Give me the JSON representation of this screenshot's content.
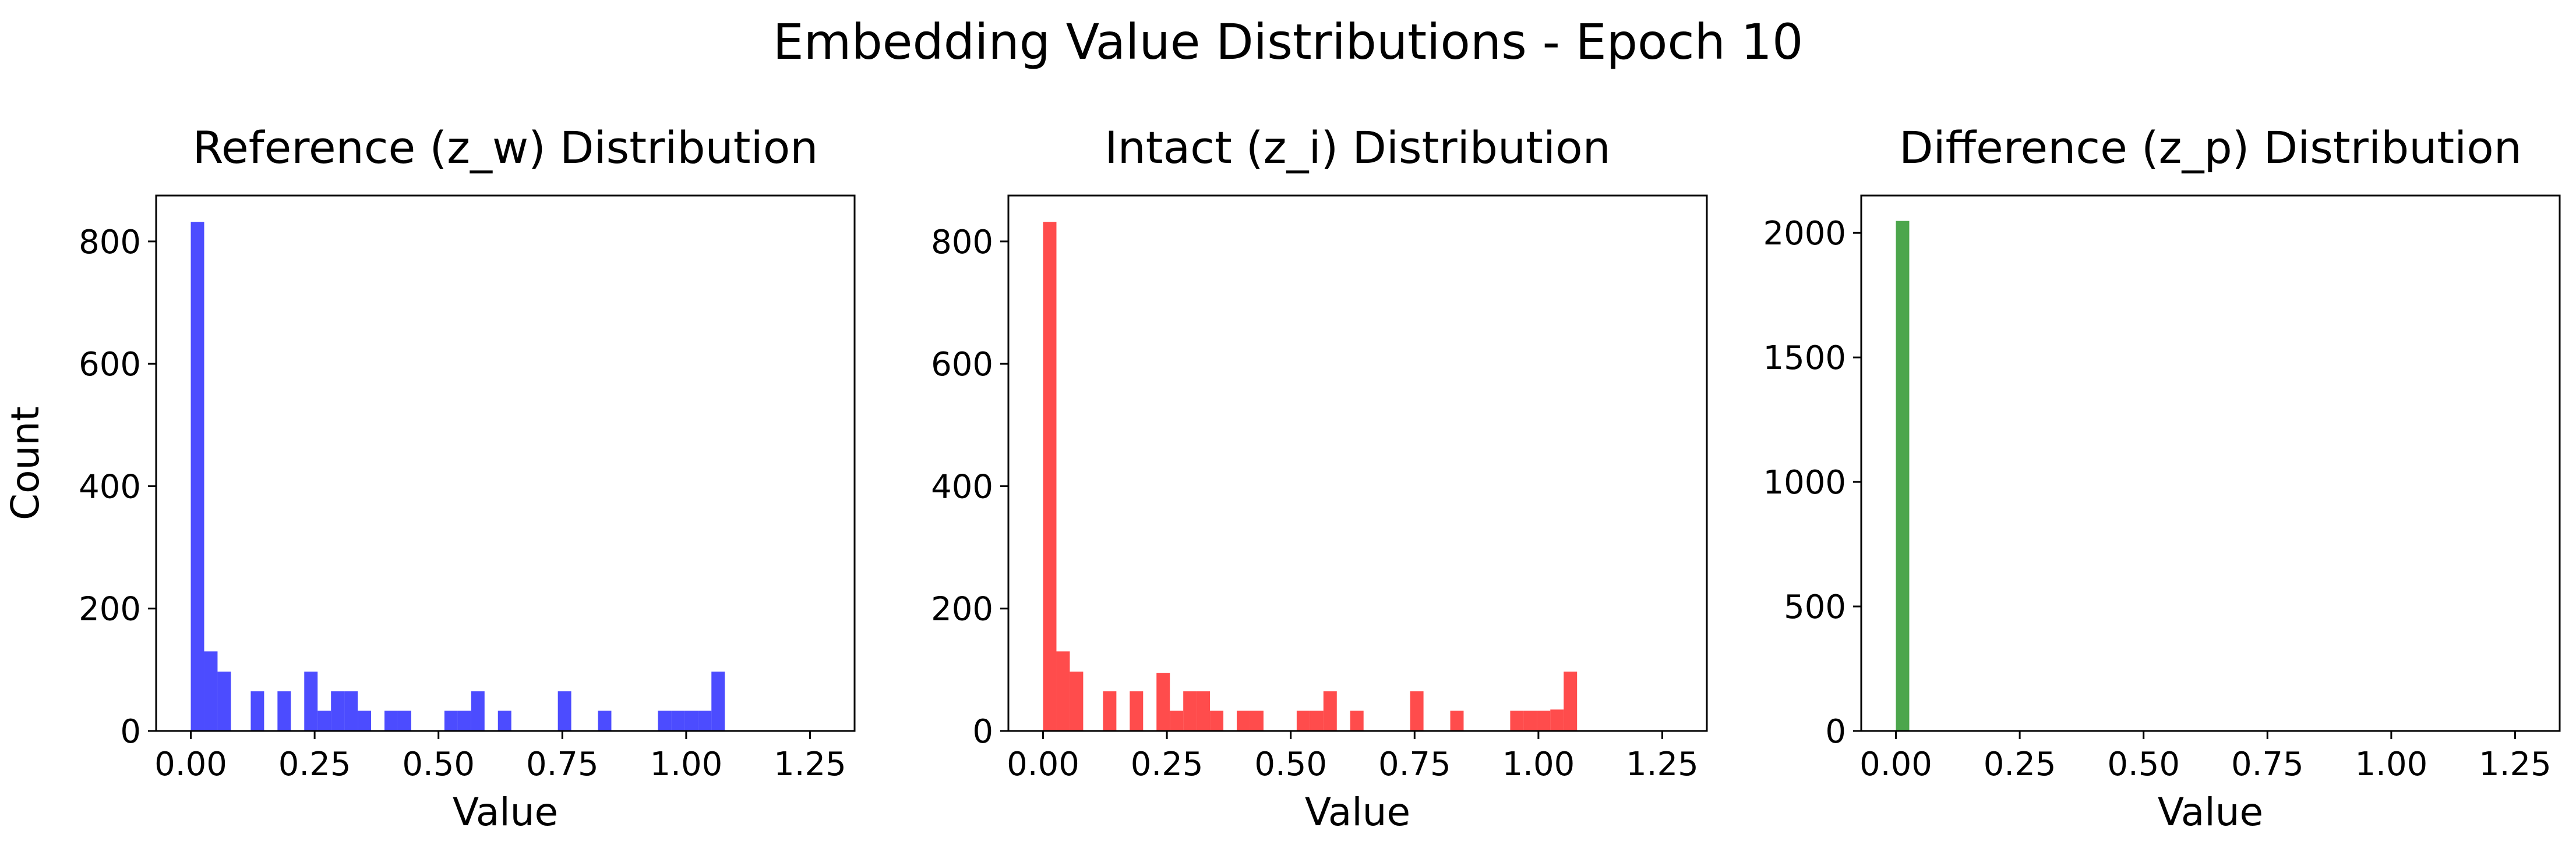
{
  "figure": {
    "suptitle": "Embedding Value Distributions - Epoch 10"
  },
  "chart_data": [
    {
      "type": "bar",
      "title": "Reference (z_w) Distribution",
      "xlabel": "Value",
      "ylabel": "Count",
      "color": "#0000ff",
      "xlim": [
        -0.07,
        1.34
      ],
      "ylim": [
        0,
        875
      ],
      "xticks": [
        "0.00",
        "0.25",
        "0.50",
        "0.75",
        "1.00",
        "1.25"
      ],
      "yticks": [
        "0",
        "200",
        "400",
        "600",
        "800"
      ],
      "bin_width": 0.027,
      "bins": [
        {
          "x": 0.0,
          "count": 832
        },
        {
          "x": 0.027,
          "count": 130
        },
        {
          "x": 0.054,
          "count": 97
        },
        {
          "x": 0.121,
          "count": 65
        },
        {
          "x": 0.175,
          "count": 65
        },
        {
          "x": 0.229,
          "count": 97
        },
        {
          "x": 0.256,
          "count": 33
        },
        {
          "x": 0.283,
          "count": 65
        },
        {
          "x": 0.31,
          "count": 65
        },
        {
          "x": 0.337,
          "count": 33
        },
        {
          "x": 0.391,
          "count": 33
        },
        {
          "x": 0.418,
          "count": 33
        },
        {
          "x": 0.512,
          "count": 33
        },
        {
          "x": 0.539,
          "count": 33
        },
        {
          "x": 0.566,
          "count": 65
        },
        {
          "x": 0.62,
          "count": 33
        },
        {
          "x": 0.741,
          "count": 65
        },
        {
          "x": 0.822,
          "count": 33
        },
        {
          "x": 0.943,
          "count": 33
        },
        {
          "x": 0.97,
          "count": 33
        },
        {
          "x": 0.997,
          "count": 33
        },
        {
          "x": 1.024,
          "count": 33
        },
        {
          "x": 1.051,
          "count": 97
        }
      ]
    },
    {
      "type": "bar",
      "title": "Intact (z_i) Distribution",
      "xlabel": "Value",
      "ylabel": "",
      "color": "#ff0000",
      "xlim": [
        -0.07,
        1.34
      ],
      "ylim": [
        0,
        875
      ],
      "xticks": [
        "0.00",
        "0.25",
        "0.50",
        "0.75",
        "1.00",
        "1.25"
      ],
      "yticks": [
        "0",
        "200",
        "400",
        "600",
        "800"
      ],
      "bin_width": 0.027,
      "bins": [
        {
          "x": 0.0,
          "count": 832
        },
        {
          "x": 0.027,
          "count": 130
        },
        {
          "x": 0.054,
          "count": 97
        },
        {
          "x": 0.121,
          "count": 65
        },
        {
          "x": 0.175,
          "count": 65
        },
        {
          "x": 0.229,
          "count": 95
        },
        {
          "x": 0.256,
          "count": 33
        },
        {
          "x": 0.283,
          "count": 65
        },
        {
          "x": 0.31,
          "count": 65
        },
        {
          "x": 0.337,
          "count": 33
        },
        {
          "x": 0.391,
          "count": 33
        },
        {
          "x": 0.418,
          "count": 33
        },
        {
          "x": 0.512,
          "count": 33
        },
        {
          "x": 0.539,
          "count": 33
        },
        {
          "x": 0.566,
          "count": 65
        },
        {
          "x": 0.62,
          "count": 33
        },
        {
          "x": 0.741,
          "count": 65
        },
        {
          "x": 0.822,
          "count": 33
        },
        {
          "x": 0.943,
          "count": 33
        },
        {
          "x": 0.97,
          "count": 33
        },
        {
          "x": 0.997,
          "count": 33
        },
        {
          "x": 1.024,
          "count": 35
        },
        {
          "x": 1.051,
          "count": 97
        }
      ]
    },
    {
      "type": "bar",
      "title": "Difference (z_p) Distribution",
      "xlabel": "Value",
      "ylabel": "",
      "color": "#008000",
      "xlim": [
        -0.07,
        1.34
      ],
      "ylim": [
        0,
        2150
      ],
      "xticks": [
        "0.00",
        "0.25",
        "0.50",
        "0.75",
        "1.00",
        "1.25"
      ],
      "yticks": [
        "0",
        "500",
        "1000",
        "1500",
        "2000"
      ],
      "bin_width": 0.027,
      "bins": [
        {
          "x": 0.0,
          "count": 2048
        }
      ]
    }
  ]
}
